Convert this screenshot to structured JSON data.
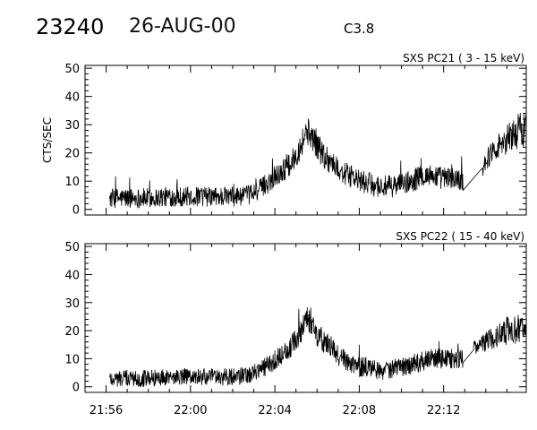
{
  "header": {
    "event_id": "23240",
    "date": "26-AUG-00",
    "flare_class": "C3.8"
  },
  "chart_data": [
    {
      "type": "line",
      "title": "SXS PC21  (  3 - 15 keV)",
      "xlabel": "",
      "ylabel": "CTS/SEC",
      "xlim": [
        "21:55:00",
        "22:15:55"
      ],
      "ylim": [
        -2,
        51
      ],
      "yticks": [
        "0",
        "10",
        "20",
        "30",
        "40",
        "50"
      ],
      "xticks": [],
      "grid": false,
      "legend": "none",
      "data_start": "21:56:10",
      "gap": [
        "22:12:55",
        "22:13:50"
      ],
      "series": [
        {
          "x": [
            "21:56:10",
            "21:57:00",
            "21:58:00",
            "21:59:00",
            "22:00:00",
            "22:01:00",
            "22:02:00",
            "22:02:45",
            "22:03:15",
            "22:03:45",
            "22:04:15",
            "22:04:45",
            "22:05:15",
            "22:05:30",
            "22:05:45",
            "22:06:00",
            "22:06:20",
            "22:06:40",
            "22:07:00",
            "22:07:30",
            "22:08:00",
            "22:08:30",
            "22:09:00",
            "22:09:30",
            "22:10:00",
            "22:10:30",
            "22:11:00",
            "22:11:30",
            "22:12:00",
            "22:12:30",
            "22:12:55",
            "22:13:50",
            "22:14:20",
            "22:14:50",
            "22:15:20",
            "22:15:55"
          ],
          "values": [
            4,
            4,
            4,
            4.5,
            4.5,
            4.5,
            4.5,
            5,
            7,
            10,
            13,
            16,
            23,
            28,
            26,
            23,
            19,
            17,
            14,
            12,
            10,
            9,
            8,
            8,
            9,
            10,
            12,
            12,
            11,
            11,
            10,
            15,
            21,
            24,
            27,
            29
          ],
          "noise": [
            3.5,
            3.5,
            3.5,
            3.5,
            3.5,
            3.5,
            3.5,
            3.5,
            3.5,
            4,
            4,
            4,
            5,
            5,
            5,
            5,
            5,
            4.5,
            4,
            4,
            4,
            4,
            4,
            4,
            4,
            4,
            4,
            4,
            4,
            4,
            4,
            3.5,
            4,
            5,
            6,
            7
          ]
        }
      ]
    },
    {
      "type": "line",
      "title": "SXS PC22  ( 15 - 40 keV)",
      "xlabel": "",
      "ylabel": "",
      "xlim": [
        "21:55:00",
        "22:15:55"
      ],
      "ylim": [
        -2,
        51
      ],
      "yticks": [
        "0",
        "10",
        "20",
        "30",
        "40",
        "50"
      ],
      "xticks": [
        "21:56",
        "22:00",
        "22:04",
        "22:08",
        "22:12"
      ],
      "grid": false,
      "legend": "none",
      "data_start": "21:56:10",
      "gap": [
        "22:12:55",
        "22:13:25"
      ],
      "series": [
        {
          "x": [
            "21:56:10",
            "21:57:00",
            "21:58:00",
            "21:59:00",
            "22:00:00",
            "22:01:00",
            "22:02:00",
            "22:02:45",
            "22:03:15",
            "22:03:45",
            "22:04:15",
            "22:04:45",
            "22:05:15",
            "22:05:30",
            "22:05:45",
            "22:06:00",
            "22:06:20",
            "22:06:40",
            "22:07:00",
            "22:07:30",
            "22:08:00",
            "22:08:30",
            "22:09:00",
            "22:09:30",
            "22:10:00",
            "22:10:30",
            "22:11:00",
            "22:11:30",
            "22:12:00",
            "22:12:30",
            "22:12:55",
            "22:13:25",
            "22:14:00",
            "22:14:30",
            "22:15:00",
            "22:15:55"
          ],
          "values": [
            3,
            3,
            3,
            3.5,
            3.5,
            3.5,
            3.5,
            4,
            6,
            8,
            11,
            14,
            20,
            25,
            22,
            19,
            16,
            14,
            11,
            9,
            7,
            7,
            6,
            6,
            7,
            8,
            9,
            10,
            10,
            10,
            10,
            14,
            16,
            18,
            20,
            21
          ],
          "noise": [
            3,
            3,
            3,
            3,
            3,
            3,
            3,
            3,
            3,
            3.5,
            3.5,
            4,
            4.5,
            4.5,
            4.5,
            4.5,
            4,
            4,
            3.5,
            3.5,
            3.5,
            3.5,
            3.5,
            3.5,
            3.5,
            3.5,
            3.5,
            3.5,
            3.5,
            3.5,
            3.5,
            3,
            3.5,
            4,
            5,
            5
          ]
        }
      ]
    }
  ]
}
